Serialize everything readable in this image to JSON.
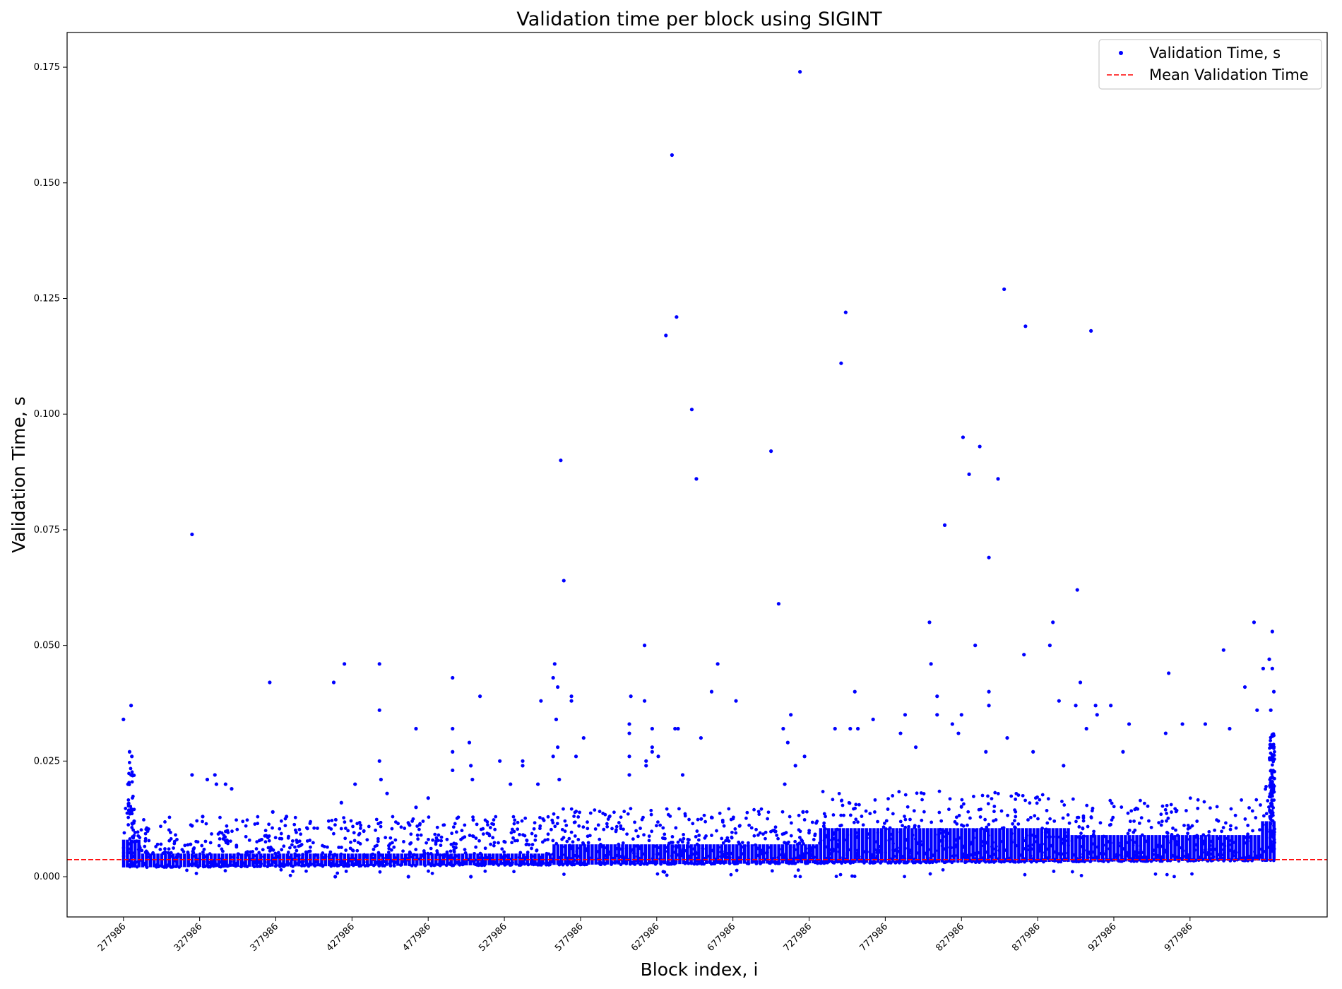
{
  "chart_data": {
    "type": "scatter",
    "title": "Validation time per block using SIGINT",
    "xlabel": "Block index, i",
    "ylabel": "Validation Time, s",
    "xlim": [
      241000,
      1068000
    ],
    "ylim": [
      -0.0087,
      0.1825
    ],
    "xticks": [
      "277986",
      "327986",
      "377986",
      "427986",
      "477986",
      "527986",
      "577986",
      "627986",
      "677986",
      "727986",
      "777986",
      "827986",
      "877986",
      "927986",
      "977986"
    ],
    "xtick_values": [
      277986,
      327986,
      377986,
      427986,
      477986,
      527986,
      577986,
      627986,
      677986,
      727986,
      777986,
      827986,
      877986,
      927986,
      977986
    ],
    "yticks": [
      "0.000",
      "0.025",
      "0.050",
      "0.075",
      "0.100",
      "0.125",
      "0.150",
      "0.175"
    ],
    "ytick_values": [
      0.0,
      0.025,
      0.05,
      0.075,
      0.1,
      0.125,
      0.15,
      0.175
    ],
    "grid": false,
    "legend_position": "top-right",
    "mean_validation_time": 0.0037,
    "colors": {
      "points": "#0000ff",
      "mean_line": "#ff0000"
    },
    "series": [
      {
        "name": "Validation Time, s",
        "points": [
          [
            277986,
            0.034
          ],
          [
            283000,
            0.037
          ],
          [
            282000,
            0.027
          ],
          [
            283500,
            0.026
          ],
          [
            284000,
            0.022
          ],
          [
            281000,
            0.02
          ],
          [
            285000,
            0.012
          ],
          [
            323000,
            0.022
          ],
          [
            323000,
            0.011
          ],
          [
            322000,
            0.007
          ],
          [
            324000,
            0.006
          ],
          [
            323000,
            0.074
          ],
          [
            333000,
            0.021
          ],
          [
            338000,
            0.022
          ],
          [
            339000,
            0.02
          ],
          [
            345000,
            0.02
          ],
          [
            349000,
            0.019
          ],
          [
            330000,
            0.013
          ],
          [
            374000,
            0.042
          ],
          [
            376000,
            0.014
          ],
          [
            385000,
            0.013
          ],
          [
            416000,
            0.042
          ],
          [
            423000,
            0.046
          ],
          [
            421000,
            0.016
          ],
          [
            417000,
            0.0
          ],
          [
            430000,
            0.02
          ],
          [
            446000,
            0.046
          ],
          [
            446000,
            0.036
          ],
          [
            446000,
            0.025
          ],
          [
            447000,
            0.021
          ],
          [
            451000,
            0.018
          ],
          [
            465000,
            0.0
          ],
          [
            470000,
            0.032
          ],
          [
            470000,
            0.015
          ],
          [
            478000,
            0.017
          ],
          [
            494000,
            0.043
          ],
          [
            494000,
            0.032
          ],
          [
            494000,
            0.027
          ],
          [
            494000,
            0.023
          ],
          [
            505000,
            0.029
          ],
          [
            506000,
            0.024
          ],
          [
            507000,
            0.021
          ],
          [
            512000,
            0.039
          ],
          [
            506000,
            0.0
          ],
          [
            525000,
            0.025
          ],
          [
            532000,
            0.02
          ],
          [
            540000,
            0.025
          ],
          [
            540000,
            0.024
          ],
          [
            550000,
            0.02
          ],
          [
            552000,
            0.038
          ],
          [
            561000,
            0.046
          ],
          [
            560000,
            0.043
          ],
          [
            563000,
            0.041
          ],
          [
            562000,
            0.034
          ],
          [
            563000,
            0.028
          ],
          [
            560000,
            0.026
          ],
          [
            564000,
            0.021
          ],
          [
            565000,
            0.09
          ],
          [
            567000,
            0.064
          ],
          [
            572000,
            0.039
          ],
          [
            572000,
            0.038
          ],
          [
            575000,
            0.026
          ],
          [
            580000,
            0.03
          ],
          [
            611000,
            0.039
          ],
          [
            610000,
            0.033
          ],
          [
            610000,
            0.031
          ],
          [
            610000,
            0.026
          ],
          [
            610000,
            0.022
          ],
          [
            620000,
            0.05
          ],
          [
            620000,
            0.038
          ],
          [
            621000,
            0.025
          ],
          [
            621000,
            0.024
          ],
          [
            625000,
            0.028
          ],
          [
            625000,
            0.027
          ],
          [
            629000,
            0.026
          ],
          [
            625000,
            0.032
          ],
          [
            634000,
            0.117
          ],
          [
            638000,
            0.156
          ],
          [
            641000,
            0.121
          ],
          [
            651000,
            0.101
          ],
          [
            654000,
            0.086
          ],
          [
            640000,
            0.032
          ],
          [
            642000,
            0.032
          ],
          [
            645000,
            0.022
          ],
          [
            657000,
            0.03
          ],
          [
            664000,
            0.04
          ],
          [
            668000,
            0.046
          ],
          [
            680000,
            0.038
          ],
          [
            703000,
            0.092
          ],
          [
            708000,
            0.059
          ],
          [
            716000,
            0.035
          ],
          [
            711000,
            0.032
          ],
          [
            714000,
            0.029
          ],
          [
            712000,
            0.02
          ],
          [
            719000,
            0.024
          ],
          [
            722000,
            0.174
          ],
          [
            725000,
            0.026
          ],
          [
            724000,
            0.014
          ],
          [
            749000,
            0.111
          ],
          [
            752000,
            0.122
          ],
          [
            758000,
            0.04
          ],
          [
            745000,
            0.032
          ],
          [
            755000,
            0.032
          ],
          [
            760000,
            0.032
          ],
          [
            770000,
            0.034
          ],
          [
            788000,
            0.031
          ],
          [
            791000,
            0.035
          ],
          [
            798000,
            0.028
          ],
          [
            807000,
            0.055
          ],
          [
            808000,
            0.046
          ],
          [
            812000,
            0.039
          ],
          [
            812000,
            0.035
          ],
          [
            817000,
            0.076
          ],
          [
            829000,
            0.095
          ],
          [
            833000,
            0.087
          ],
          [
            837000,
            0.05
          ],
          [
            840000,
            0.093
          ],
          [
            846000,
            0.069
          ],
          [
            846000,
            0.04
          ],
          [
            846000,
            0.037
          ],
          [
            852000,
            0.086
          ],
          [
            858000,
            0.03
          ],
          [
            844000,
            0.027
          ],
          [
            828000,
            0.035
          ],
          [
            826000,
            0.031
          ],
          [
            822000,
            0.033
          ],
          [
            856000,
            0.127
          ],
          [
            869000,
            0.048
          ],
          [
            870000,
            0.119
          ],
          [
            875000,
            0.027
          ],
          [
            886000,
            0.05
          ],
          [
            888000,
            0.055
          ],
          [
            892000,
            0.038
          ],
          [
            895000,
            0.024
          ],
          [
            903000,
            0.037
          ],
          [
            913000,
            0.118
          ],
          [
            910000,
            0.032
          ],
          [
            916000,
            0.037
          ],
          [
            917000,
            0.035
          ],
          [
            926000,
            0.037
          ],
          [
            934000,
            0.027
          ],
          [
            938000,
            0.033
          ],
          [
            904000,
            0.062
          ],
          [
            906000,
            0.042
          ],
          [
            962000,
            0.031
          ],
          [
            964000,
            0.044
          ],
          [
            973000,
            0.033
          ],
          [
            988000,
            0.033
          ],
          [
            1000000,
            0.049
          ],
          [
            1004000,
            0.032
          ],
          [
            1014000,
            0.041
          ],
          [
            1020000,
            0.055
          ],
          [
            1026000,
            0.045
          ],
          [
            1030000,
            0.047
          ],
          [
            1032000,
            0.053
          ],
          [
            1032000,
            0.045
          ],
          [
            1033000,
            0.04
          ],
          [
            1031000,
            0.036
          ],
          [
            1022000,
            0.036
          ]
        ]
      },
      {
        "name": "Mean Validation Time",
        "values": [
          0.0037
        ]
      }
    ]
  }
}
